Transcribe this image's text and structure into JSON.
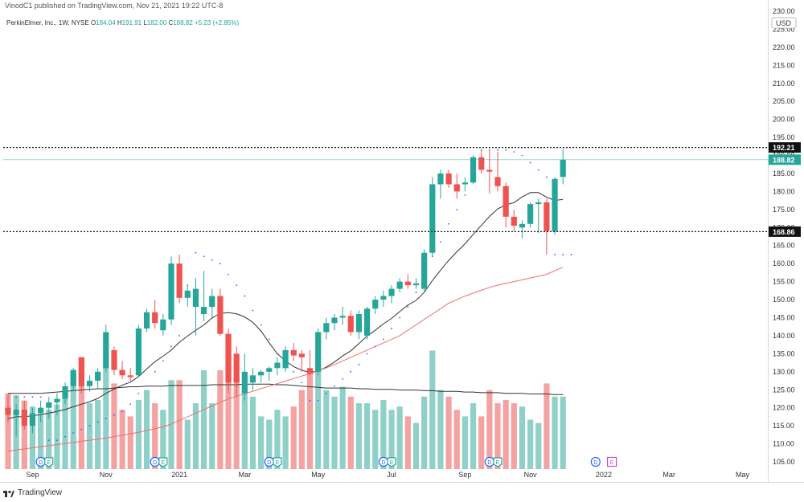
{
  "header": {
    "published": "VinodC1 published on TradingView.com, Nov 21, 2021 19:22 UTC-8",
    "symbol": "PerkinElmer, Inc., 1W, NYSE",
    "open_label": "O",
    "open": "184.04",
    "high_label": "H",
    "high": "191.91",
    "low_label": "L",
    "low": "182.00",
    "close_label": "C",
    "close": "188.82",
    "change": "+5.23 (+2.85%)"
  },
  "brand": {
    "name": "TradingView"
  },
  "colors": {
    "up": "#26a69a",
    "down": "#ef5350",
    "vol_up": "#8fd0c8",
    "vol_down": "#f4a2a2",
    "sma10": "#333333",
    "sma40": "#f06e6e",
    "psar": "#2962ff",
    "vol_ma": "#333333",
    "last_label_bg": "#26a69a",
    "level_label_bg": "#111111"
  },
  "chart_data": {
    "type": "candlestick",
    "title": "PerkinElmer, Inc., 1W, NYSE",
    "currency": "USD",
    "ylim": [
      103,
      230
    ],
    "y_ticks": [
      105,
      110,
      115,
      120,
      125,
      130,
      135,
      140,
      145,
      150,
      155,
      160,
      165,
      170,
      175,
      180,
      185,
      190,
      195,
      200,
      205,
      210,
      215,
      220,
      225
    ],
    "y_tick_labels": [
      "105.00",
      "110.00",
      "115.00",
      "120.00",
      "125.00",
      "130.00",
      "135.00",
      "140.00",
      "145.00",
      "150.00",
      "155.00",
      "160.00",
      "165.00",
      "170.00",
      "175.00",
      "180.00",
      "185.00",
      "190.00",
      "195.00",
      "200.00",
      "205.00",
      "210.00",
      "215.00",
      "220.00",
      "225.00"
    ],
    "top_tick_label": "230.00",
    "x_labels": [
      {
        "label": "Sep",
        "bar": 3
      },
      {
        "label": "Nov",
        "bar": 12
      },
      {
        "label": "2021",
        "bar": 21
      },
      {
        "label": "Mar",
        "bar": 29
      },
      {
        "label": "May",
        "bar": 38
      },
      {
        "label": "Jul",
        "bar": 47
      },
      {
        "label": "Sep",
        "bar": 56
      },
      {
        "label": "Nov",
        "bar": 64
      },
      {
        "label": "2022",
        "bar": 73
      },
      {
        "label": "Mar",
        "bar": 81
      },
      {
        "label": "May",
        "bar": 90
      }
    ],
    "candles": [
      {
        "o": 120.0,
        "h": 123.5,
        "l": 116.0,
        "c": 118.0,
        "v": 11.5
      },
      {
        "o": 118.0,
        "h": 121.0,
        "l": 112.0,
        "c": 119.5,
        "v": 11.2
      },
      {
        "o": 119.5,
        "h": 122.0,
        "l": 114.0,
        "c": 115.0,
        "v": 10.4
      },
      {
        "o": 115.0,
        "h": 120.0,
        "l": 113.0,
        "c": 118.5,
        "v": 9.5
      },
      {
        "o": 118.5,
        "h": 122.0,
        "l": 116.0,
        "c": 120.0,
        "v": 8.4
      },
      {
        "o": 120.0,
        "h": 123.0,
        "l": 117.0,
        "c": 121.5,
        "v": 9.0
      },
      {
        "o": 121.5,
        "h": 124.0,
        "l": 118.0,
        "c": 122.5,
        "v": 9.8
      },
      {
        "o": 122.5,
        "h": 127.0,
        "l": 121.0,
        "c": 126.0,
        "v": 12.0
      },
      {
        "o": 126.0,
        "h": 131.0,
        "l": 124.5,
        "c": 130.5,
        "v": 14.5
      },
      {
        "o": 134.0,
        "h": 134.0,
        "l": 124.0,
        "c": 126.0,
        "v": 17.0
      },
      {
        "o": 126.0,
        "h": 129.0,
        "l": 124.5,
        "c": 127.5,
        "v": 10.0
      },
      {
        "o": 127.5,
        "h": 131.0,
        "l": 125.0,
        "c": 130.0,
        "v": 10.5
      },
      {
        "o": 131.0,
        "h": 143.0,
        "l": 130.0,
        "c": 141.0,
        "v": 15.5
      },
      {
        "o": 136.0,
        "h": 137.0,
        "l": 129.0,
        "c": 130.5,
        "v": 13.0
      },
      {
        "o": 130.5,
        "h": 133.0,
        "l": 128.0,
        "c": 129.0,
        "v": 9.0
      },
      {
        "o": 129.0,
        "h": 131.0,
        "l": 127.0,
        "c": 128.5,
        "v": 8.0
      },
      {
        "o": 129.0,
        "h": 143.0,
        "l": 128.5,
        "c": 142.0,
        "v": 10.5
      },
      {
        "o": 142.0,
        "h": 147.5,
        "l": 141.0,
        "c": 146.5,
        "v": 12.0
      },
      {
        "o": 146.5,
        "h": 150.0,
        "l": 142.0,
        "c": 143.5,
        "v": 10.0
      },
      {
        "o": 141.5,
        "h": 146.0,
        "l": 140.0,
        "c": 144.5,
        "v": 9.0
      },
      {
        "o": 144.5,
        "h": 162.0,
        "l": 143.0,
        "c": 160.0,
        "v": 13.5
      },
      {
        "o": 160.0,
        "h": 162.5,
        "l": 149.0,
        "c": 150.5,
        "v": 13.5
      },
      {
        "o": 150.5,
        "h": 154.0,
        "l": 148.0,
        "c": 152.5,
        "v": 7.5
      },
      {
        "o": 148.0,
        "h": 156.0,
        "l": 140.0,
        "c": 153.0,
        "v": 10.0
      },
      {
        "o": 146.0,
        "h": 158.0,
        "l": 144.0,
        "c": 148.0,
        "v": 15.0
      },
      {
        "o": 148.0,
        "h": 153.0,
        "l": 145.0,
        "c": 151.0,
        "v": 10.0
      },
      {
        "o": 151.0,
        "h": 153.0,
        "l": 140.0,
        "c": 140.5,
        "v": 15.0
      },
      {
        "o": 140.5,
        "h": 142.0,
        "l": 124.0,
        "c": 127.0,
        "v": 20.0
      },
      {
        "o": 135.0,
        "h": 137.0,
        "l": 123.0,
        "c": 127.0,
        "v": 14.0
      },
      {
        "o": 124.0,
        "h": 135.0,
        "l": 122.0,
        "c": 130.0,
        "v": 12.0
      },
      {
        "o": 127.0,
        "h": 131.0,
        "l": 125.0,
        "c": 129.0,
        "v": 11.0
      },
      {
        "o": 129.0,
        "h": 130.5,
        "l": 127.0,
        "c": 130.0,
        "v": 8.0
      },
      {
        "o": 130.0,
        "h": 131.5,
        "l": 127.5,
        "c": 131.0,
        "v": 7.5
      },
      {
        "o": 131.0,
        "h": 134.0,
        "l": 129.0,
        "c": 132.5,
        "v": 9.0
      },
      {
        "o": 131.0,
        "h": 137.0,
        "l": 130.0,
        "c": 136.0,
        "v": 8.0
      },
      {
        "o": 136.0,
        "h": 138.0,
        "l": 133.0,
        "c": 134.5,
        "v": 9.5
      },
      {
        "o": 135.0,
        "h": 136.0,
        "l": 130.0,
        "c": 134.0,
        "v": 12.0
      },
      {
        "o": 131.0,
        "h": 136.0,
        "l": 129.0,
        "c": 129.5,
        "v": 15.0
      },
      {
        "o": 130.0,
        "h": 142.0,
        "l": 129.0,
        "c": 141.0,
        "v": 16.0
      },
      {
        "o": 141.0,
        "h": 145.0,
        "l": 139.0,
        "c": 143.5,
        "v": 12.0
      },
      {
        "o": 143.5,
        "h": 146.0,
        "l": 141.5,
        "c": 145.0,
        "v": 11.0
      },
      {
        "o": 145.0,
        "h": 148.0,
        "l": 143.0,
        "c": 145.5,
        "v": 12.5
      },
      {
        "o": 145.5,
        "h": 147.0,
        "l": 140.0,
        "c": 141.0,
        "v": 11.0
      },
      {
        "o": 141.0,
        "h": 147.0,
        "l": 139.0,
        "c": 146.0,
        "v": 10.0
      },
      {
        "o": 140.0,
        "h": 148.0,
        "l": 139.0,
        "c": 147.5,
        "v": 10.0
      },
      {
        "o": 147.5,
        "h": 151.0,
        "l": 146.0,
        "c": 150.0,
        "v": 9.0
      },
      {
        "o": 150.0,
        "h": 152.5,
        "l": 148.0,
        "c": 151.0,
        "v": 10.5
      },
      {
        "o": 151.0,
        "h": 154.0,
        "l": 149.0,
        "c": 153.0,
        "v": 9.0
      },
      {
        "o": 153.0,
        "h": 156.0,
        "l": 152.0,
        "c": 155.0,
        "v": 9.5
      },
      {
        "o": 155.0,
        "h": 157.0,
        "l": 153.0,
        "c": 154.0,
        "v": 8.0
      },
      {
        "o": 154.0,
        "h": 156.0,
        "l": 153.0,
        "c": 154.5,
        "v": 7.0
      },
      {
        "o": 153.0,
        "h": 164.0,
        "l": 152.0,
        "c": 163.0,
        "v": 11.0
      },
      {
        "o": 163.0,
        "h": 184.0,
        "l": 162.0,
        "c": 182.0,
        "v": 18.0
      },
      {
        "o": 182.0,
        "h": 186.0,
        "l": 178.0,
        "c": 185.0,
        "v": 12.0
      },
      {
        "o": 185.0,
        "h": 186.0,
        "l": 181.0,
        "c": 182.0,
        "v": 11.0
      },
      {
        "o": 182.0,
        "h": 185.0,
        "l": 178.0,
        "c": 180.0,
        "v": 9.0
      },
      {
        "o": 182.0,
        "h": 184.0,
        "l": 180.0,
        "c": 182.5,
        "v": 8.0
      },
      {
        "o": 182.5,
        "h": 190.0,
        "l": 182.0,
        "c": 189.5,
        "v": 10.0
      },
      {
        "o": 189.5,
        "h": 191.5,
        "l": 185.0,
        "c": 186.0,
        "v": 8.0
      },
      {
        "o": 186.0,
        "h": 191.5,
        "l": 179.5,
        "c": 185.5,
        "v": 12.0
      },
      {
        "o": 184.0,
        "h": 191.0,
        "l": 180.0,
        "c": 181.5,
        "v": 10.0
      },
      {
        "o": 181.5,
        "h": 182.5,
        "l": 170.0,
        "c": 173.0,
        "v": 10.5
      },
      {
        "o": 173.0,
        "h": 175.0,
        "l": 169.0,
        "c": 170.5,
        "v": 10.0
      },
      {
        "o": 170.0,
        "h": 172.0,
        "l": 167.0,
        "c": 171.0,
        "v": 9.5
      },
      {
        "o": 171.0,
        "h": 177.0,
        "l": 170.0,
        "c": 176.5,
        "v": 7.5
      },
      {
        "o": 176.5,
        "h": 178.0,
        "l": 168.5,
        "c": 177.0,
        "v": 7.0
      },
      {
        "o": 177.0,
        "h": 178.0,
        "l": 162.5,
        "c": 169.0,
        "v": 13.0
      },
      {
        "o": 169.0,
        "h": 184.0,
        "l": 168.0,
        "c": 183.5,
        "v": 11.0
      },
      {
        "o": 184.04,
        "h": 191.91,
        "l": 182.0,
        "c": 188.82,
        "v": 11.0
      }
    ],
    "sma10": [
      117,
      117.5,
      117.5,
      117.8,
      118.1,
      118.5,
      119.0,
      119.5,
      120.3,
      121.0,
      121.7,
      122.6,
      124.0,
      125.2,
      126.3,
      127.1,
      128.7,
      130.8,
      132.8,
      134.3,
      136.0,
      138.2,
      139.9,
      141.5,
      143.0,
      144.9,
      146.2,
      146.4,
      146.1,
      145.2,
      143.7,
      141.3,
      138.0,
      135.0,
      133.0,
      131.4,
      130.4,
      129.8,
      130.2,
      131.3,
      132.7,
      134.4,
      135.8,
      137.8,
      139.9,
      141.5,
      143.3,
      144.8,
      146.7,
      148.5,
      149.8,
      152.0,
      155.3,
      158.2,
      160.9,
      163.3,
      165.5,
      168.1,
      170.6,
      173.1,
      175.2,
      176.3,
      176.9,
      178.5,
      179.7,
      179.7,
      178.4,
      177.5,
      177.8
    ],
    "sma40": [
      108,
      108.3,
      108.6,
      108.9,
      109.2,
      109.5,
      109.8,
      110.1,
      110.4,
      110.7,
      111.0,
      111.3,
      111.6,
      112.0,
      112.4,
      112.8,
      113.2,
      113.7,
      114.2,
      114.7,
      115.5,
      116.5,
      117.5,
      118.5,
      119.5,
      120.5,
      121.5,
      122.5,
      123.2,
      123.9,
      124.6,
      125.3,
      126.0,
      126.7,
      127.4,
      128.1,
      128.8,
      129.5,
      130.3,
      131.1,
      132.0,
      133.0,
      134.0,
      135.0,
      136.0,
      137.0,
      138.0,
      139.0,
      140.0,
      141.5,
      143.0,
      144.5,
      146.0,
      147.5,
      149.0,
      150.0,
      151.0,
      151.8,
      152.6,
      153.4,
      154.0,
      154.5,
      155.0,
      155.5,
      156.0,
      156.5,
      157.0,
      158.0,
      159.0
    ],
    "psar": [
      123,
      123,
      123,
      123,
      111,
      111,
      112,
      113,
      114,
      115,
      116,
      117,
      118,
      119,
      121,
      124,
      126,
      130,
      133,
      137,
      140,
      154,
      163,
      162,
      161,
      160,
      157,
      154,
      151,
      147,
      143,
      139,
      135,
      132,
      130,
      127,
      122,
      122,
      124,
      126,
      128,
      130,
      132,
      135,
      137,
      139,
      142,
      145,
      148,
      152,
      157,
      162,
      166,
      171,
      175,
      179,
      183,
      191.5,
      191.5,
      191.5,
      191.5,
      191.0,
      190.0,
      188.0,
      186.0,
      184.0,
      162.5,
      162.5,
      162.5
    ],
    "vol_ma": [
      11.5,
      11.5,
      11.5,
      11.5,
      11.5,
      11.6,
      11.7,
      11.8,
      11.9,
      12.0,
      12.1,
      12.2,
      12.2,
      12.3,
      12.4,
      12.5,
      12.5,
      12.6,
      12.6,
      12.6,
      12.7,
      12.7,
      12.7,
      12.7,
      12.7,
      12.8,
      12.8,
      12.8,
      12.8,
      12.9,
      12.9,
      12.9,
      12.9,
      12.8,
      12.8,
      12.7,
      12.6,
      12.5,
      12.4,
      12.3,
      12.3,
      12.3,
      12.3,
      12.2,
      12.2,
      12.1,
      12.1,
      12.1,
      12.0,
      12.0,
      12.0,
      11.9,
      11.9,
      11.8,
      11.8,
      11.8,
      11.7,
      11.7,
      11.6,
      11.6,
      11.6,
      11.5,
      11.5,
      11.5,
      11.4,
      11.4,
      11.4,
      11.3,
      11.3
    ],
    "levels": [
      {
        "price": 192.21,
        "label": "192.21",
        "style": "dotted"
      },
      {
        "price": 168.86,
        "label": "168.86",
        "style": "dotted"
      }
    ],
    "last_price": {
      "price": 188.82,
      "label": "188.82"
    },
    "events": [
      {
        "bar": 4,
        "type": "dividend",
        "label": "D"
      },
      {
        "bar": 5,
        "type": "earnings",
        "label": "E"
      },
      {
        "bar": 18,
        "type": "dividend",
        "label": "D"
      },
      {
        "bar": 19,
        "type": "earnings",
        "label": "E"
      },
      {
        "bar": 32,
        "type": "dividend",
        "label": "D"
      },
      {
        "bar": 33,
        "type": "earnings",
        "label": "E"
      },
      {
        "bar": 46,
        "type": "dividend",
        "label": "D"
      },
      {
        "bar": 47,
        "type": "earnings",
        "label": "E"
      },
      {
        "bar": 59,
        "type": "dividend",
        "label": "D"
      },
      {
        "bar": 60,
        "type": "earnings",
        "label": "E"
      },
      {
        "bar": 72,
        "type": "dividend",
        "label": "D",
        "future": true
      },
      {
        "bar": 74,
        "type": "earnings",
        "label": "E",
        "future": true
      }
    ]
  }
}
